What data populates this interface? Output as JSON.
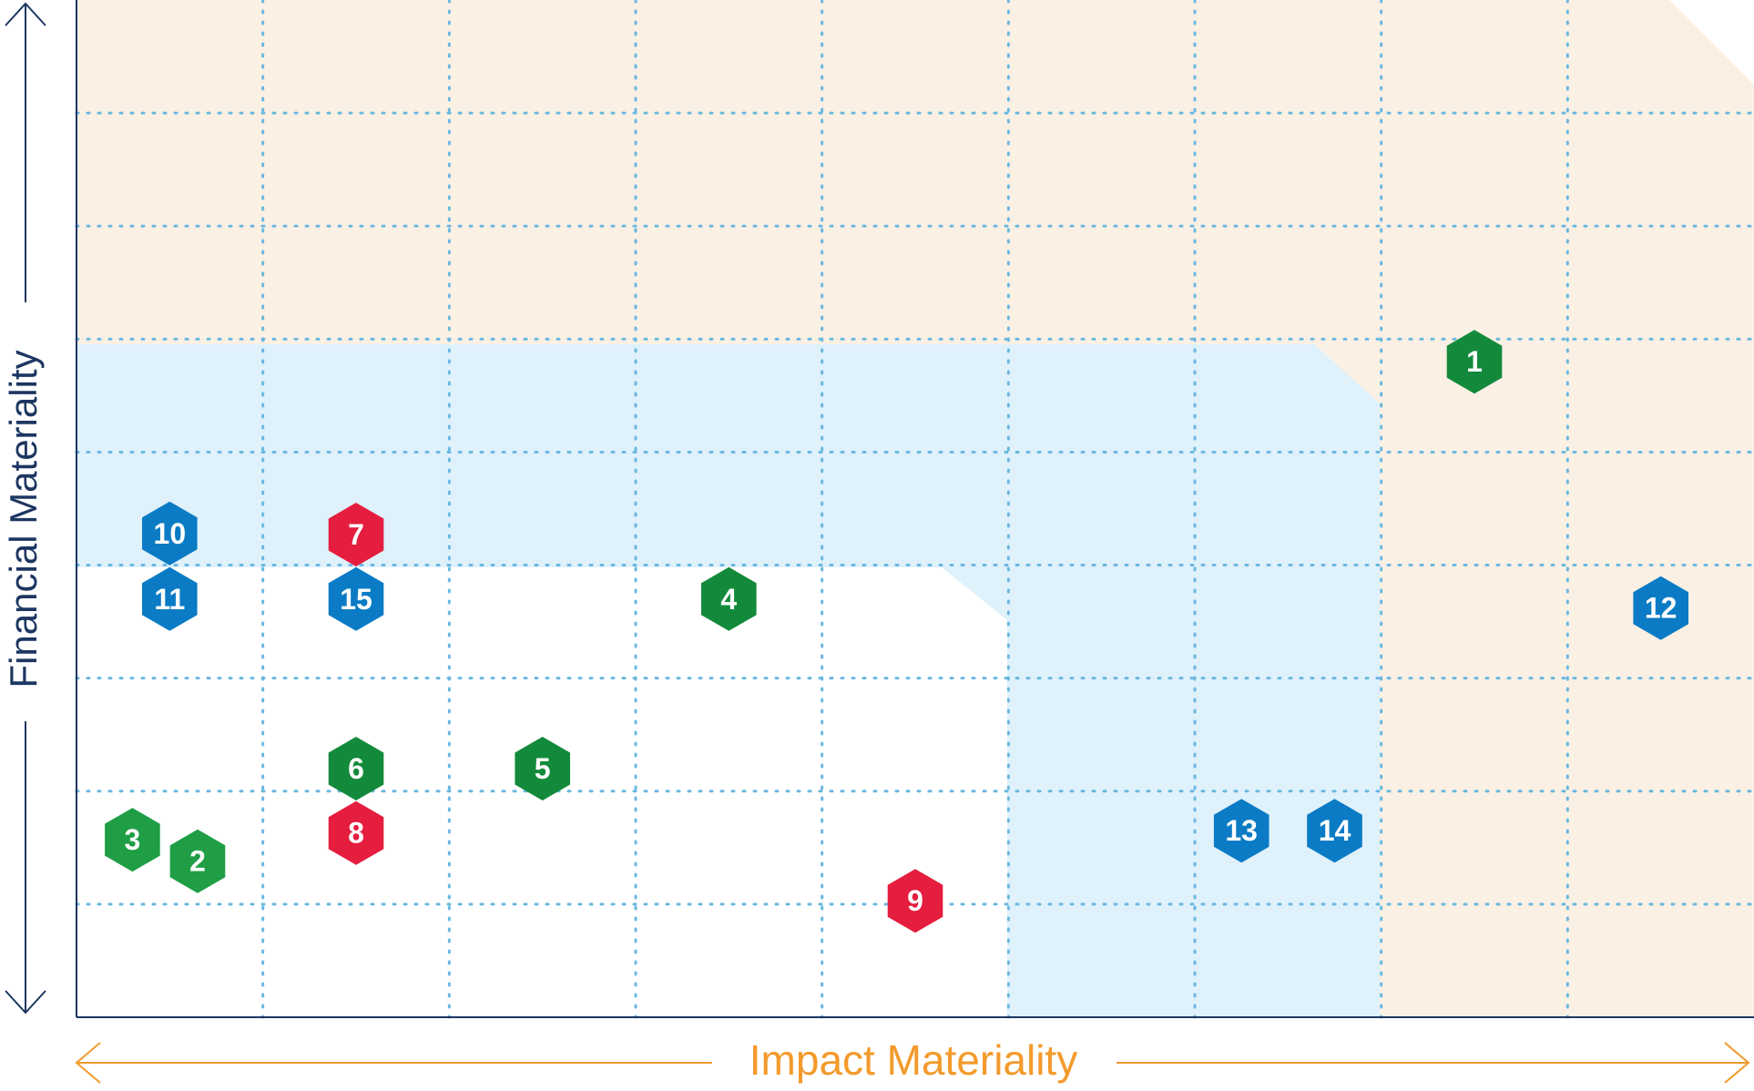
{
  "chart_data": {
    "type": "scatter",
    "xlabel": "Impact Materiality",
    "ylabel": "Financial Materiality",
    "xlim": [
      0,
      9
    ],
    "ylim": [
      0,
      9
    ],
    "grid": true,
    "colors": {
      "high_zone": "#faf0e4",
      "medium_zone": "#dff1fb",
      "grid": "#6ab8e0",
      "axis": "#1d3661",
      "xlabel": "#f39a2b",
      "green": "#1f9e45",
      "dark_green": "#138a3b",
      "blue": "#0a7bc4",
      "red": "#e51d3e"
    },
    "points": [
      {
        "label": "1",
        "x": 7.5,
        "y": 5.8,
        "color": "dark_green"
      },
      {
        "label": "2",
        "x": 0.65,
        "y": 1.38,
        "color": "green"
      },
      {
        "label": "3",
        "x": 0.3,
        "y": 1.57,
        "color": "green"
      },
      {
        "label": "4",
        "x": 3.5,
        "y": 3.7,
        "color": "dark_green"
      },
      {
        "label": "5",
        "x": 2.5,
        "y": 2.2,
        "color": "dark_green"
      },
      {
        "label": "6",
        "x": 1.5,
        "y": 2.2,
        "color": "dark_green"
      },
      {
        "label": "7",
        "x": 1.5,
        "y": 4.27,
        "color": "red"
      },
      {
        "label": "8",
        "x": 1.5,
        "y": 1.63,
        "color": "red"
      },
      {
        "label": "9",
        "x": 4.5,
        "y": 1.03,
        "color": "red"
      },
      {
        "label": "10",
        "x": 0.5,
        "y": 4.28,
        "color": "blue"
      },
      {
        "label": "11",
        "x": 0.5,
        "y": 3.7,
        "color": "blue"
      },
      {
        "label": "12",
        "x": 8.5,
        "y": 3.62,
        "color": "blue"
      },
      {
        "label": "13",
        "x": 6.25,
        "y": 1.65,
        "color": "blue"
      },
      {
        "label": "14",
        "x": 6.75,
        "y": 1.65,
        "color": "blue"
      },
      {
        "label": "15",
        "x": 1.5,
        "y": 3.7,
        "color": "blue"
      }
    ]
  }
}
